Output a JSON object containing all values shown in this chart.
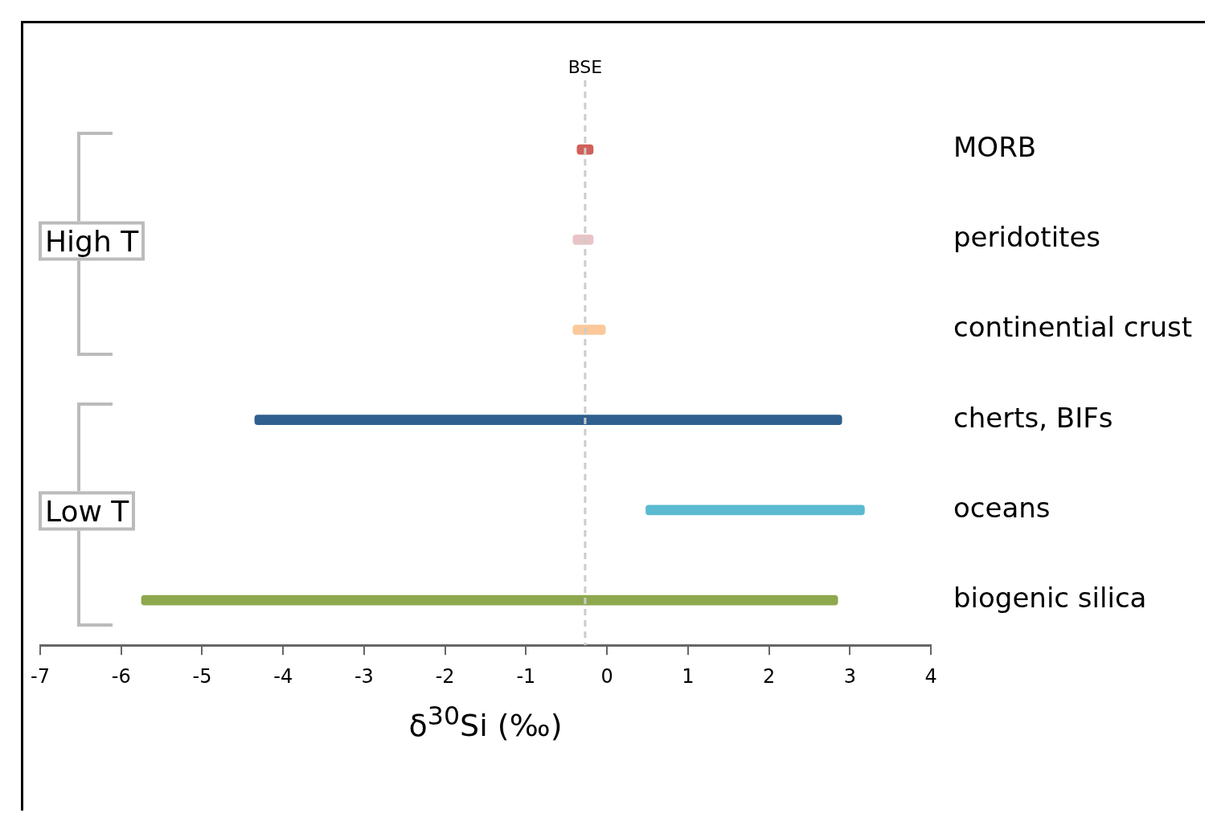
{
  "chart_data": {
    "type": "bar",
    "orientation": "horizontal",
    "xlabel": "δ$^{30}$Si (‰)",
    "categories": [
      "MORB",
      "peridotites",
      "continential crust",
      "cherts, BIFs",
      "oceans",
      "biogenic silica"
    ],
    "base": [
      -0.37,
      -0.42,
      -0.42,
      -4.35,
      0.48,
      -5.75
    ],
    "values": [
      0.2,
      0.25,
      0.4,
      7.25,
      2.7,
      8.6
    ],
    "colors": [
      "#d0605a",
      "#e8c4c6",
      "#fbc89a",
      "#2e5f8e",
      "#5bbad0",
      "#8ea84e"
    ],
    "xlim": [
      -7,
      4
    ],
    "xticks": [
      -7,
      -6,
      -5,
      -4,
      -3,
      -2,
      -1,
      0,
      1,
      2,
      3,
      4
    ],
    "ref_lines": [
      {
        "axis": "x",
        "value": -0.27,
        "label": "BSE",
        "color": "#cccccc",
        "line_style": "dashed"
      }
    ],
    "annotations": [
      "High T",
      "Low T"
    ]
  }
}
